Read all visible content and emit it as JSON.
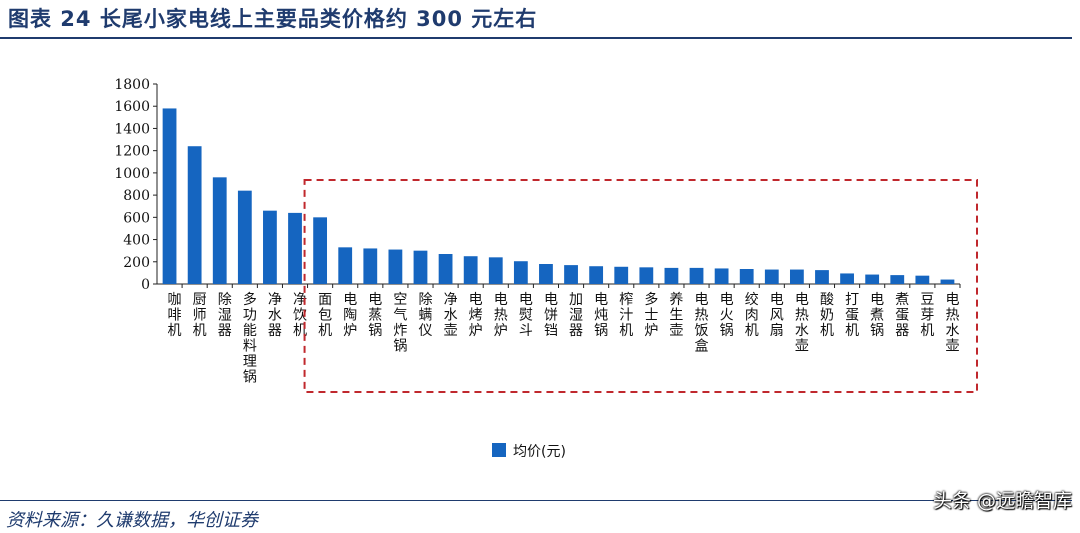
{
  "header": {
    "figure_title": "图表 24   长尾小家电线上主要品类价格约 300 元左右"
  },
  "footer": {
    "source": "资料来源：久谦数据，华创证券",
    "watermark": "头条 @远瞻智库"
  },
  "colors": {
    "bar": "#1565c0",
    "title": "#1f3b6e",
    "highlight_box": "#c0282d"
  },
  "chart_data": {
    "type": "bar",
    "categories": [
      "咖啡机",
      "厨师机",
      "除湿器",
      "多功能料理锅",
      "净水器",
      "净饮机",
      "面包机",
      "电陶炉",
      "电蒸锅",
      "空气炸锅",
      "除螨仪",
      "净水壶",
      "电烤炉",
      "电热炉",
      "电熨斗",
      "电饼铛",
      "加湿器",
      "电炖锅",
      "榨汁机",
      "多士炉",
      "养生壶",
      "电热饭盒",
      "电火锅",
      "绞肉机",
      "电风扇",
      "电热水壶",
      "酸奶机",
      "打蛋机",
      "电煮锅",
      "煮蛋器",
      "豆芽机",
      "电热水壶"
    ],
    "series": [
      {
        "name": "均价(元)",
        "values": [
          1580,
          1240,
          960,
          840,
          660,
          640,
          600,
          330,
          320,
          310,
          300,
          270,
          250,
          240,
          205,
          180,
          170,
          160,
          155,
          150,
          145,
          145,
          140,
          135,
          130,
          130,
          125,
          95,
          85,
          80,
          75,
          40
        ]
      }
    ],
    "ylim": [
      0,
      1800
    ],
    "yticks": [
      0,
      200,
      400,
      600,
      800,
      1000,
      1200,
      1400,
      1600,
      1800
    ],
    "grid": false,
    "legend": "bottom-center",
    "highlight_range": [
      "面包机",
      "电热水壶"
    ]
  }
}
